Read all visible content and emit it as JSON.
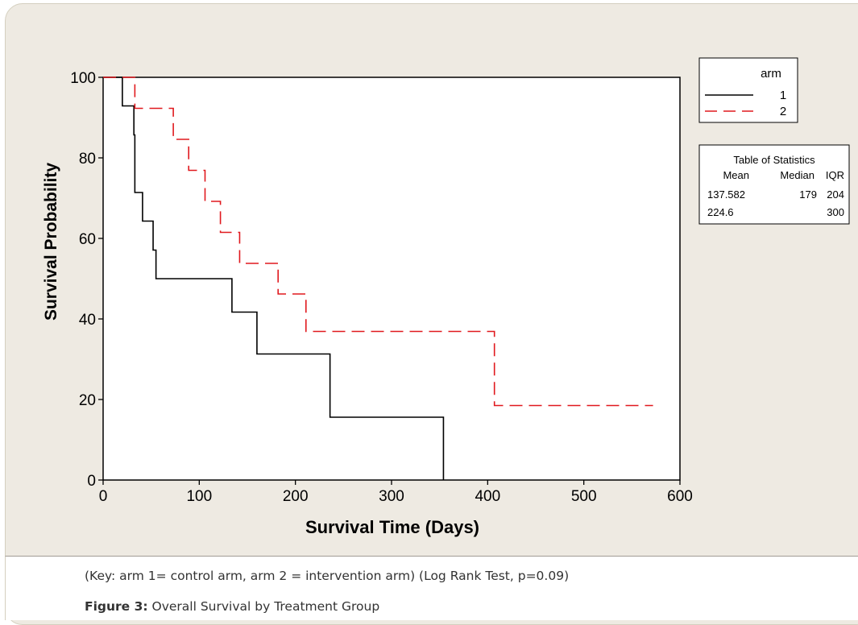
{
  "chart_data": {
    "type": "line",
    "subtype": "kaplan-meier step plot",
    "xlabel": "Survival Time (Days)",
    "ylabel": "Survival Probability",
    "xlim": [
      0,
      600
    ],
    "ylim": [
      0,
      100
    ],
    "xticks": [
      "0",
      "100",
      "200",
      "300",
      "400",
      "500",
      "600"
    ],
    "yticks": [
      "0",
      "20",
      "40",
      "60",
      "80",
      "100"
    ],
    "legend": {
      "title": "arm",
      "placement": "top-right",
      "entries": [
        "1",
        "2"
      ]
    },
    "series": [
      {
        "name": "1",
        "color": "#000000",
        "style": "solid",
        "x": [
          0,
          20,
          20,
          32,
          32,
          33,
          33,
          41,
          41,
          52,
          52,
          55,
          55,
          134,
          134,
          160,
          160,
          236,
          236,
          354,
          354
        ],
        "y": [
          100,
          100,
          92.9,
          92.9,
          85.7,
          85.7,
          71.4,
          71.4,
          64.3,
          64.3,
          57.1,
          57.1,
          50.0,
          50.0,
          41.7,
          41.7,
          31.3,
          31.3,
          15.6,
          15.6,
          0
        ]
      },
      {
        "name": "2",
        "color": "#e0191e",
        "style": "dashed",
        "x": [
          0,
          33,
          33,
          73,
          73,
          89,
          89,
          106,
          106,
          122,
          122,
          142,
          142,
          182,
          182,
          211,
          211,
          407,
          407,
          572
        ],
        "y": [
          100,
          100,
          92.3,
          92.3,
          84.6,
          84.6,
          76.9,
          76.9,
          69.2,
          69.2,
          61.5,
          61.5,
          53.8,
          53.8,
          46.2,
          46.2,
          36.9,
          36.9,
          18.5,
          18.5
        ]
      }
    ],
    "stats_table": {
      "title": "Table of Statistics",
      "headers": [
        "Mean",
        "Median",
        "IQR"
      ],
      "rows": [
        [
          "137.582",
          "179",
          "204"
        ],
        [
          "224.6",
          "",
          "300"
        ]
      ]
    }
  },
  "caption": {
    "key_text": "(Key:  arm 1= control arm, arm 2 = intervention arm)  (Log Rank Test, p=0.09)",
    "figure_label": "Figure 3:",
    "figure_title": "Overall Survival by Treatment Group"
  }
}
